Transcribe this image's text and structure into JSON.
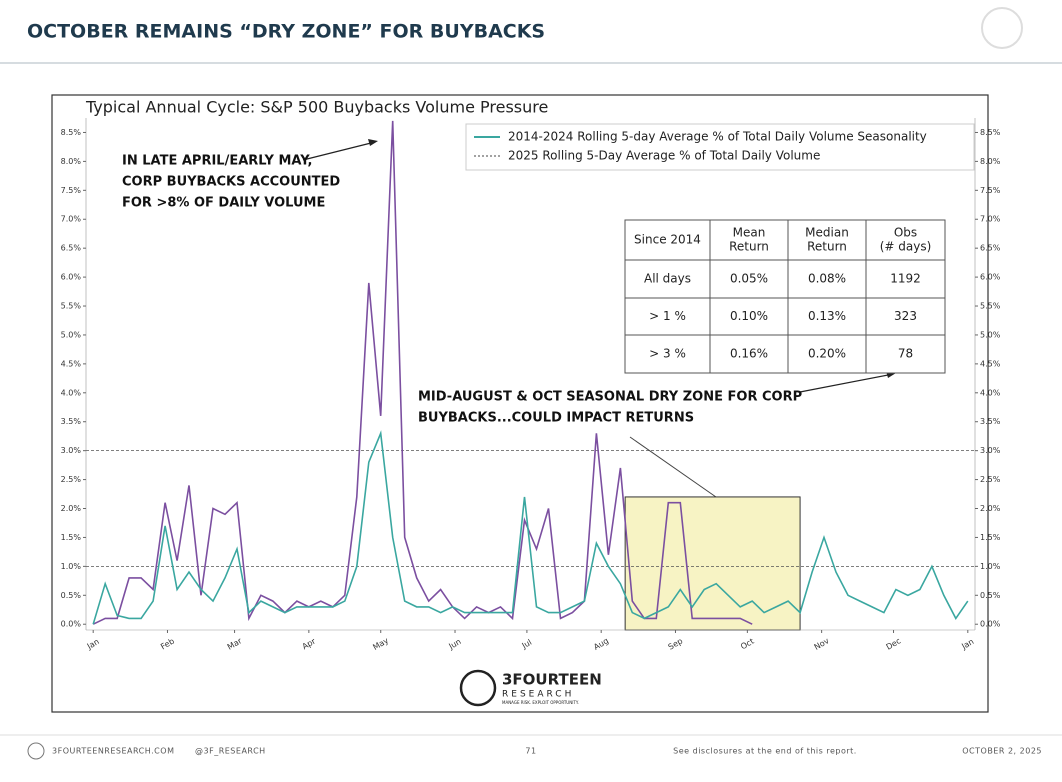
{
  "header": {
    "title": "OCTOBER REMAINS “DRY ZONE” FOR BUYBACKS"
  },
  "chart_data": {
    "type": "line",
    "title": "Typical Annual Cycle: S&P 500 Buybacks Volume Pressure",
    "x": [
      0,
      5,
      10,
      15,
      20,
      25,
      30,
      35,
      40,
      45,
      50,
      55,
      60,
      65,
      70,
      75,
      80,
      85,
      90,
      95,
      100,
      105,
      110,
      115,
      120,
      125,
      130,
      135,
      140,
      145,
      150,
      155,
      160,
      165,
      170,
      175,
      180,
      185,
      190,
      195,
      200,
      205,
      210,
      215,
      220,
      225,
      230,
      235,
      240,
      245,
      250,
      255,
      260,
      265,
      270,
      275,
      280,
      285,
      290,
      295,
      300,
      305,
      310,
      315,
      320,
      325,
      330,
      335,
      340,
      345,
      350,
      355,
      360,
      365
    ],
    "series": [
      {
        "name": "2014-2024 Rolling 5-day Average % of Total Daily Volume Seasonality",
        "color": "#3aa7a0",
        "values": [
          0.0,
          0.7,
          0.15,
          0.1,
          0.1,
          0.4,
          1.7,
          0.6,
          0.9,
          0.6,
          0.4,
          0.8,
          1.3,
          0.2,
          0.4,
          0.3,
          0.2,
          0.3,
          0.3,
          0.3,
          0.3,
          0.4,
          1.0,
          2.8,
          3.3,
          1.5,
          0.4,
          0.3,
          0.3,
          0.2,
          0.3,
          0.2,
          0.2,
          0.2,
          0.2,
          0.2,
          2.2,
          0.3,
          0.2,
          0.2,
          0.3,
          0.4,
          1.4,
          1.0,
          0.7,
          0.2,
          0.1,
          0.2,
          0.3,
          0.6,
          0.3,
          0.6,
          0.7,
          0.5,
          0.3,
          0.4,
          0.2,
          0.3,
          0.4,
          0.2,
          0.9,
          1.5,
          0.9,
          0.5,
          0.4,
          0.3,
          0.2,
          0.6,
          0.5,
          0.6,
          1.0,
          0.5,
          0.1,
          0.4
        ]
      },
      {
        "name": "2025 Rolling 5-Day Average % of Total Daily Volume",
        "color": "#7b4fa0",
        "values": [
          0.0,
          0.1,
          0.1,
          0.8,
          0.8,
          0.6,
          2.1,
          1.1,
          2.4,
          0.5,
          2.0,
          1.9,
          2.1,
          0.1,
          0.5,
          0.4,
          0.2,
          0.4,
          0.3,
          0.4,
          0.3,
          0.5,
          2.2,
          5.9,
          3.6,
          8.7,
          1.5,
          0.8,
          0.4,
          0.6,
          0.3,
          0.1,
          0.3,
          0.2,
          0.3,
          0.1,
          1.8,
          1.3,
          2.0,
          0.1,
          0.2,
          0.4,
          3.3,
          1.2,
          2.7,
          0.4,
          0.1,
          0.1,
          2.1,
          2.1,
          0.1,
          0.1,
          0.1,
          0.1,
          0.1,
          0.0,
          null,
          null,
          null,
          null,
          null,
          null,
          null,
          null,
          null,
          null,
          null,
          null,
          null,
          null,
          null,
          null,
          null,
          null
        ]
      }
    ],
    "xlim": [
      -3,
      368
    ],
    "xticks": [
      {
        "value": 0,
        "label": "Jan"
      },
      {
        "value": 31,
        "label": "Feb"
      },
      {
        "value": 59,
        "label": "Mar"
      },
      {
        "value": 90,
        "label": "Apr"
      },
      {
        "value": 120,
        "label": "May"
      },
      {
        "value": 151,
        "label": "Jun"
      },
      {
        "value": 181,
        "label": "Jul"
      },
      {
        "value": 212,
        "label": "Aug"
      },
      {
        "value": 243,
        "label": "Sep"
      },
      {
        "value": 273,
        "label": "Oct"
      },
      {
        "value": 304,
        "label": "Nov"
      },
      {
        "value": 334,
        "label": "Dec"
      },
      {
        "value": 365,
        "label": "Jan"
      }
    ],
    "ylim": [
      -0.1,
      8.75
    ],
    "yticks": [
      {
        "value": 0,
        "label": "0.0%"
      },
      {
        "value": 0.5,
        "label": "0.5%"
      },
      {
        "value": 1,
        "label": "1.0%"
      },
      {
        "value": 1.5,
        "label": "1.5%"
      },
      {
        "value": 2,
        "label": "2.0%"
      },
      {
        "value": 2.5,
        "label": "2.5%"
      },
      {
        "value": 3,
        "label": "3.0%"
      },
      {
        "value": 3.5,
        "label": "3.5%"
      },
      {
        "value": 4,
        "label": "4.0%"
      },
      {
        "value": 4.5,
        "label": "4.5%"
      },
      {
        "value": 5,
        "label": "5.0%"
      },
      {
        "value": 5.5,
        "label": "5.5%"
      },
      {
        "value": 6,
        "label": "6.0%"
      },
      {
        "value": 6.5,
        "label": "6.5%"
      },
      {
        "value": 7,
        "label": "7.0%"
      },
      {
        "value": 7.5,
        "label": "7.5%"
      },
      {
        "value": 8,
        "label": "8.0%"
      },
      {
        "value": 8.5,
        "label": "8.5%"
      }
    ],
    "reference_lines": [
      1,
      3
    ],
    "highlight": {
      "xlim": [
        222,
        295
      ],
      "ylim": [
        -0.1,
        2.2
      ]
    },
    "annotations": [
      [
        "IN LATE APRIL/EARLY MAY,",
        "CORP BUYBACKS ACCOUNTED",
        "FOR >8% OF DAILY VOLUME"
      ],
      [
        "MID-AUGUST & OCT SEASONAL DRY ZONE FOR CORP",
        "BUYBACKS...COULD IMPACT RETURNS"
      ]
    ]
  },
  "table": {
    "header": [
      [
        "Since 2014"
      ],
      [
        "Mean",
        "Return"
      ],
      [
        "Median",
        "Return"
      ],
      [
        "Obs",
        "(# days)"
      ]
    ],
    "rows": [
      [
        "All days",
        "0.05%",
        "0.08%",
        "1192"
      ],
      [
        "> 1 %",
        "0.10%",
        "0.13%",
        "323"
      ],
      [
        "> 3 %",
        "0.16%",
        "0.20%",
        "78"
      ]
    ]
  },
  "logo": {
    "name": "3FOURTEEN",
    "sub": "RESEARCH",
    "tagline": "MANAGE RISK. EXPLOIT OPPORTUNITY."
  },
  "footer": {
    "site": "3FOURTEENRESEARCH.COM",
    "handle": "@3F_RESEARCH",
    "page": "71",
    "disclosure": "See disclosures at the end of this report.",
    "date": "OCTOBER 2, 2025"
  }
}
